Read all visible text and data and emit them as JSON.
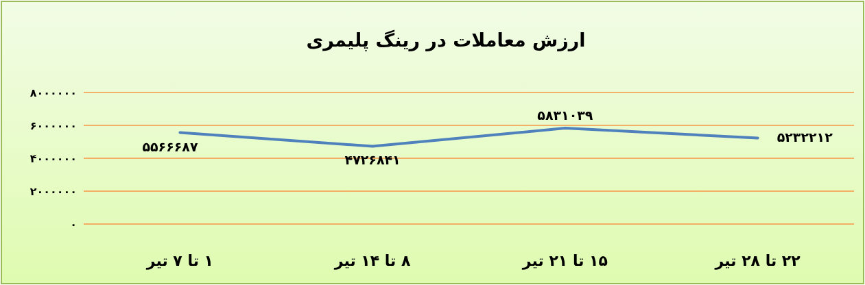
{
  "chart_data": {
    "type": "line",
    "title": "ارزش معاملات در رینگ پلیمری",
    "categories": [
      "۱ تا ۷ تیر",
      "۸ تا ۱۴ تیر",
      "۱۵ تا ۲۱ تیر",
      "۲۲ تا ۲۸ تیر"
    ],
    "series": [
      {
        "color": "#4f81bd",
        "values": [
          5566687,
          4726841,
          5831039,
          5232212
        ],
        "value_labels": [
          "۵۵۶۶۶۸۷",
          "۴۷۲۶۸۴۱",
          "۵۸۳۱۰۳۹",
          "۵۲۳۲۲۱۲"
        ]
      }
    ],
    "ylim": [
      0,
      8000000
    ],
    "yticks": [
      {
        "value": 0,
        "label": "۰"
      },
      {
        "value": 2000000,
        "label": "۲۰۰۰۰۰۰"
      },
      {
        "value": 4000000,
        "label": "۴۰۰۰۰۰۰"
      },
      {
        "value": 6000000,
        "label": "۶۰۰۰۰۰۰"
      },
      {
        "value": 8000000,
        "label": "۸۰۰۰۰۰۰"
      }
    ],
    "grid": "y",
    "marker": "none",
    "line_style": "solid"
  }
}
